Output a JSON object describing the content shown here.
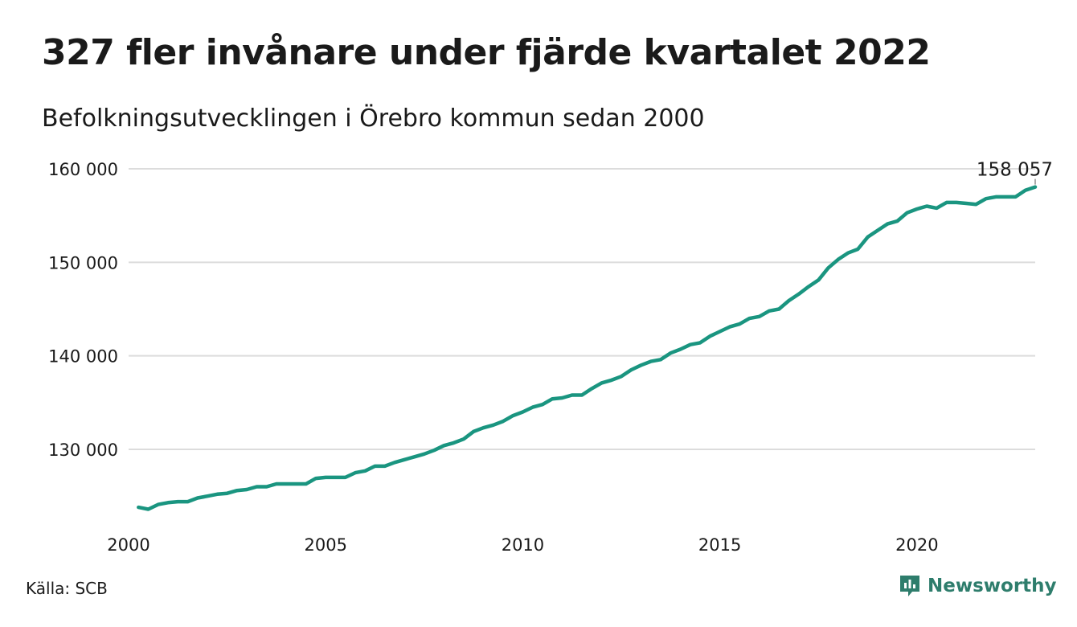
{
  "title": "327 fler invånare under fjärde kvartalet 2022",
  "subtitle": "Befolkningsutvecklingen i Örebro kommun sedan 2000",
  "source": "Källa: SCB",
  "brand": "Newsworthy",
  "colors": {
    "line": "#1a9580",
    "grid": "#dcdcdc",
    "brand": "#2e7d6c"
  },
  "chart_data": {
    "type": "line",
    "title": "327 fler invånare under fjärde kvartalet 2022",
    "subtitle": "Befolkningsutvecklingen i Örebro kommun sedan 2000",
    "xlabel": "",
    "ylabel": "",
    "xlim": [
      2000.0,
      2023.0
    ],
    "ylim": [
      122000,
      160000
    ],
    "grid": true,
    "x_ticks": [
      2000,
      2005,
      2010,
      2015,
      2020
    ],
    "x_tick_labels": [
      "2000",
      "2005",
      "2010",
      "2015",
      "2020"
    ],
    "y_ticks": [
      130000,
      140000,
      150000,
      160000
    ],
    "y_tick_labels": [
      "130 000",
      "140 000",
      "150 000",
      "160 000"
    ],
    "end_label": "158 057",
    "series": [
      {
        "x": [
          2000.25,
          2000.5,
          2000.75,
          2001.0,
          2001.25,
          2001.5,
          2001.75,
          2002.0,
          2002.25,
          2002.5,
          2002.75,
          2003.0,
          2003.25,
          2003.5,
          2003.75,
          2004.0,
          2004.25,
          2004.5,
          2004.75,
          2005.0,
          2005.25,
          2005.5,
          2005.75,
          2006.0,
          2006.25,
          2006.5,
          2006.75,
          2007.0,
          2007.25,
          2007.5,
          2007.75,
          2008.0,
          2008.25,
          2008.5,
          2008.75,
          2009.0,
          2009.25,
          2009.5,
          2009.75,
          2010.0,
          2010.25,
          2010.5,
          2010.75,
          2011.0,
          2011.25,
          2011.5,
          2011.75,
          2012.0,
          2012.25,
          2012.5,
          2012.75,
          2013.0,
          2013.25,
          2013.5,
          2013.75,
          2014.0,
          2014.25,
          2014.5,
          2014.75,
          2015.0,
          2015.25,
          2015.5,
          2015.75,
          2016.0,
          2016.25,
          2016.5,
          2016.75,
          2017.0,
          2017.25,
          2017.5,
          2017.75,
          2018.0,
          2018.25,
          2018.5,
          2018.75,
          2019.0,
          2019.25,
          2019.5,
          2019.75,
          2020.0,
          2020.25,
          2020.5,
          2020.75,
          2021.0,
          2021.25,
          2021.5,
          2021.75,
          2022.0,
          2022.25,
          2022.5,
          2022.75,
          2023.0
        ],
        "values": [
          123800,
          123600,
          124100,
          124300,
          124400,
          124400,
          124800,
          125000,
          125200,
          125300,
          125600,
          125700,
          126000,
          126000,
          126300,
          126300,
          126300,
          126300,
          126900,
          127000,
          127000,
          127000,
          127500,
          127700,
          128200,
          128200,
          128600,
          128900,
          129200,
          129500,
          129900,
          130400,
          130700,
          131100,
          131900,
          132300,
          132600,
          133000,
          133600,
          134000,
          134500,
          134800,
          135400,
          135500,
          135800,
          135800,
          136500,
          137100,
          137400,
          137800,
          138500,
          139000,
          139400,
          139600,
          140300,
          140700,
          141200,
          141400,
          142100,
          142600,
          143100,
          143400,
          144000,
          144200,
          144800,
          145000,
          145900,
          146600,
          147400,
          148100,
          149400,
          150300,
          151000,
          151400,
          152700,
          153400,
          154100,
          154400,
          155300,
          155700,
          156000,
          155800,
          156400,
          156400,
          156300,
          156200,
          156800,
          157000,
          157000,
          157000,
          157700,
          158057
        ]
      }
    ]
  }
}
